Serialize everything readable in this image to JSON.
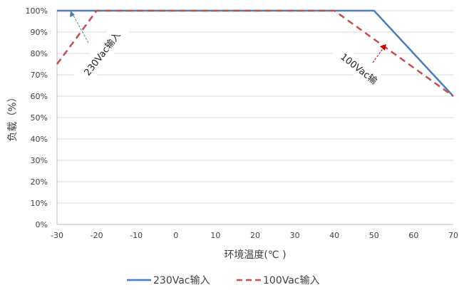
{
  "chart_data": {
    "type": "line",
    "xlabel": "环境温度(℃ )",
    "ylabel": "负载（%）",
    "xlim": [
      -30,
      70
    ],
    "ylim": [
      0,
      100
    ],
    "x_ticks": [
      "-30",
      "-20",
      "-10",
      "0",
      "10",
      "20",
      "30",
      "40",
      "50",
      "60",
      "70"
    ],
    "y_ticks": [
      "0%",
      "10%",
      "20%",
      "30%",
      "40%",
      "50%",
      "60%",
      "70%",
      "80%",
      "90%",
      "100%"
    ],
    "grid": "horizontal",
    "legend": "bottom",
    "series": [
      {
        "name": "230Vac输入",
        "color": "#4a7ebb",
        "style": "solid",
        "points": [
          [
            -30,
            100
          ],
          [
            50,
            100
          ],
          [
            70,
            60
          ]
        ]
      },
      {
        "name": "100Vac输入",
        "color": "#c0504d",
        "style": "dashed",
        "points": [
          [
            -30,
            75
          ],
          [
            -20,
            100
          ],
          [
            40,
            100
          ],
          [
            70,
            60
          ]
        ]
      }
    ],
    "annotations": [
      {
        "text": "230Vac输入",
        "color": "#4a7ebb"
      },
      {
        "text": "100Vac输",
        "color": "#c00000"
      }
    ]
  }
}
